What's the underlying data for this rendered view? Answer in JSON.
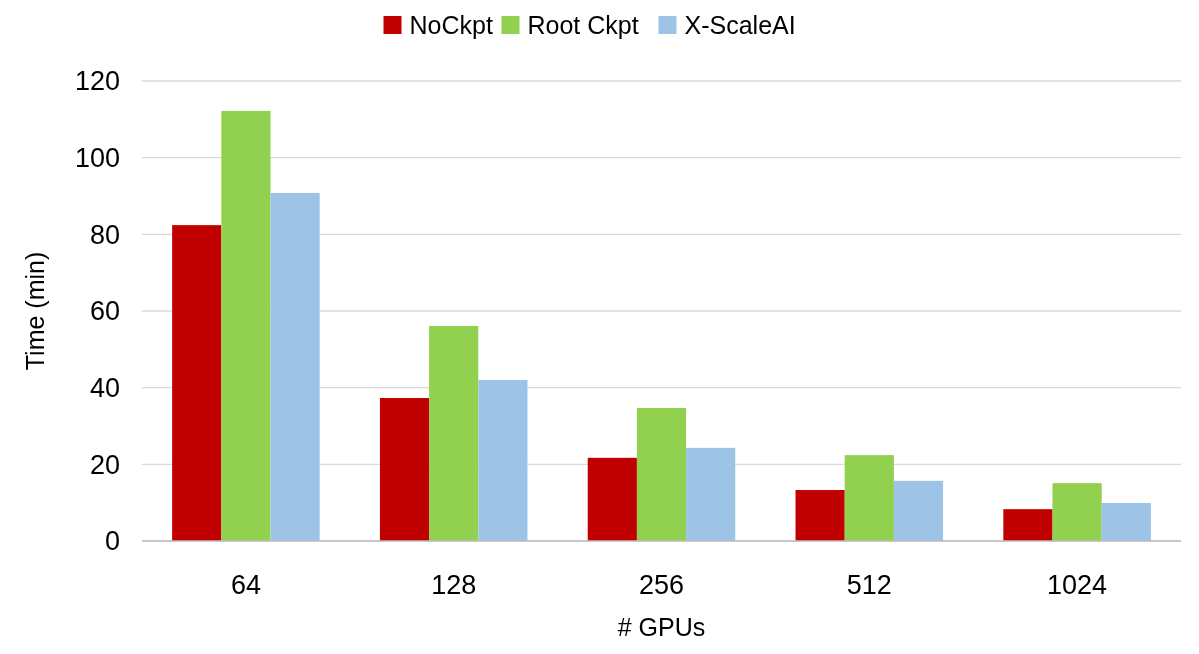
{
  "chart_data": {
    "type": "bar",
    "xlabel": "# GPUs",
    "ylabel": "Time (min)",
    "categories": [
      "64",
      "128",
      "256",
      "512",
      "1024"
    ],
    "series": [
      {
        "name": "NoCkpt",
        "color": "#c00000",
        "values": [
          82.4,
          37.3,
          21.7,
          13.3,
          8.3
        ]
      },
      {
        "name": "Root Ckpt",
        "color": "#92d050",
        "values": [
          112.2,
          56.1,
          34.7,
          22.4,
          15.1
        ]
      },
      {
        "name": "X-ScaleAI",
        "color": "#9dc3e6",
        "values": [
          90.8,
          42,
          24.3,
          15.7,
          9.9
        ]
      }
    ],
    "ylim": [
      0,
      120
    ],
    "yticks": [
      0,
      20,
      40,
      60,
      80,
      100,
      120
    ],
    "grid": "y",
    "legend": "top"
  }
}
